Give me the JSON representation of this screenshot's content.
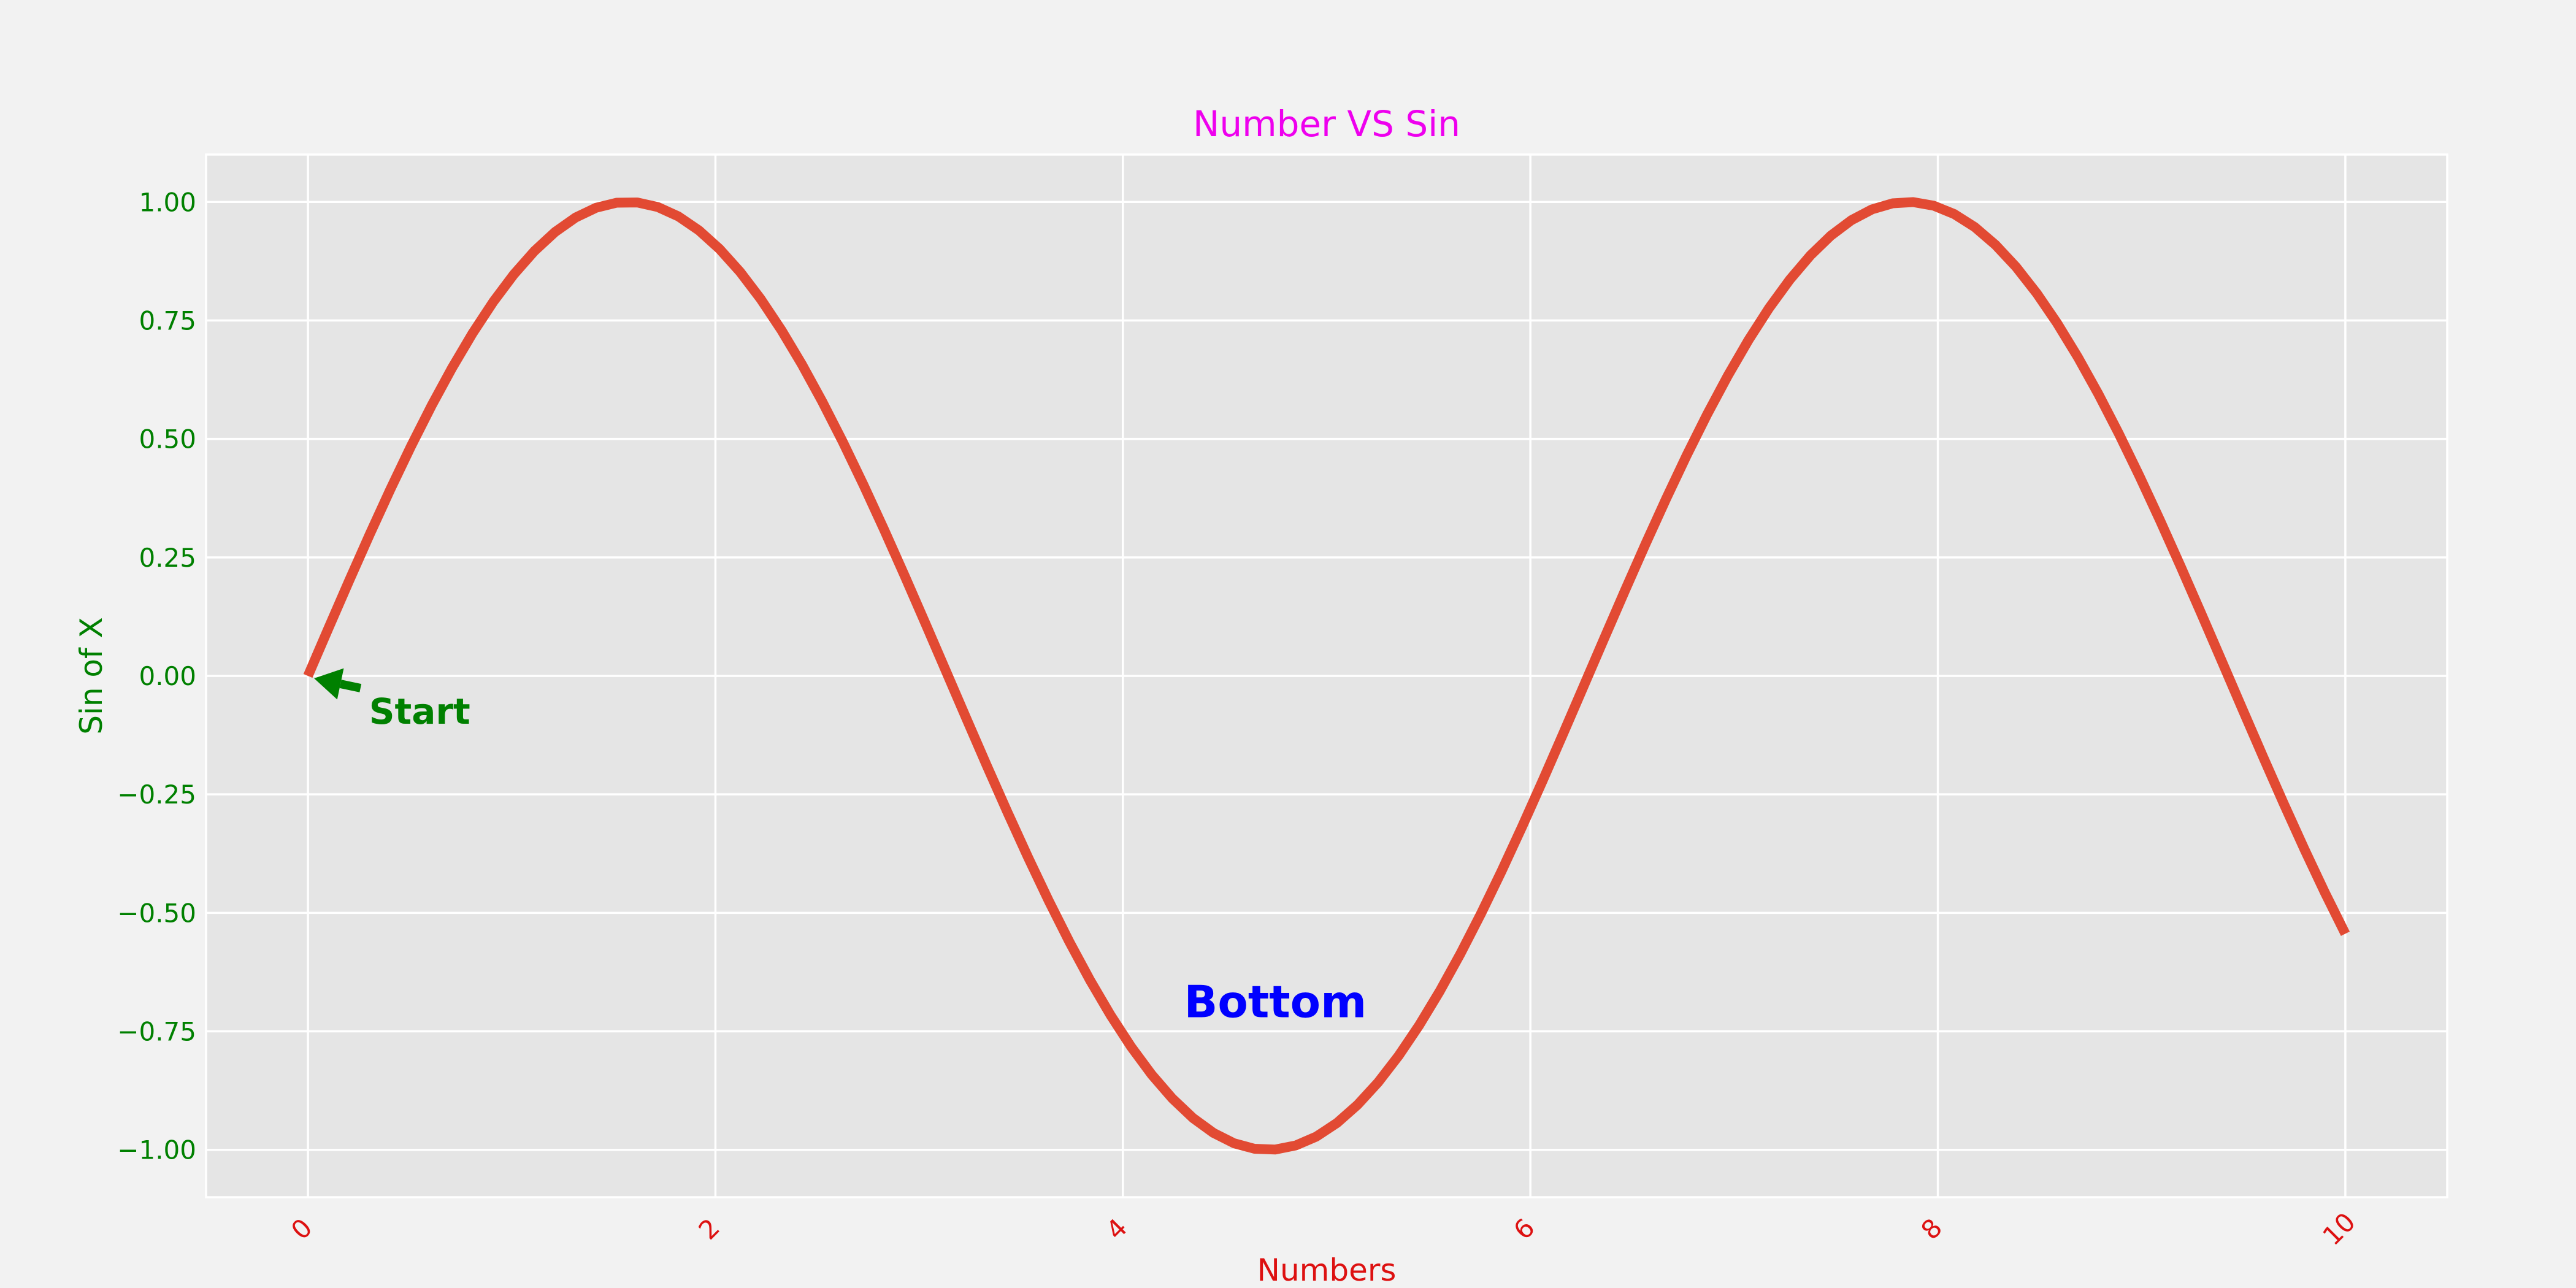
{
  "chart_data": {
    "type": "line",
    "title": "Number VS Sin",
    "xlabel": "Numbers",
    "ylabel": "Sin of X",
    "xlim": [
      -0.5,
      10.5
    ],
    "ylim": [
      -1.1,
      1.1
    ],
    "x_ticks": [
      0,
      2,
      4,
      6,
      8,
      10
    ],
    "x_tick_labels": [
      "0",
      "2",
      "4",
      "6",
      "8",
      "10"
    ],
    "y_ticks": [
      1.0,
      0.75,
      0.5,
      0.25,
      0.0,
      -0.25,
      -0.5,
      -0.75,
      -1.0
    ],
    "y_tick_labels": [
      "1.00",
      "0.75",
      "0.50",
      "0.25",
      "0.00",
      "−0.25",
      "−0.50",
      "−0.75",
      "−1.00"
    ],
    "grid": true,
    "series": [
      {
        "function": "sin(x)",
        "x_start": 0,
        "x_end": 10,
        "num_points": 100,
        "color": "#e24a33"
      }
    ],
    "annotations": [
      {
        "text": "Start",
        "x": 0.3,
        "y": -0.075,
        "arrow_to": [
          0,
          0
        ],
        "color": "#008000"
      },
      {
        "text": "Bottom",
        "x": 4.3,
        "y": -0.72,
        "color": "#0000ff"
      }
    ],
    "colors": {
      "title": "#ee00ee",
      "xlabel": "#dd1111",
      "ylabel": "#008000",
      "x_ticks": "#dd1111",
      "y_ticks": "#008000",
      "plot_bg": "#e5e5e5",
      "figure_bg": "#f2f2f2",
      "grid": "#ffffff"
    }
  }
}
